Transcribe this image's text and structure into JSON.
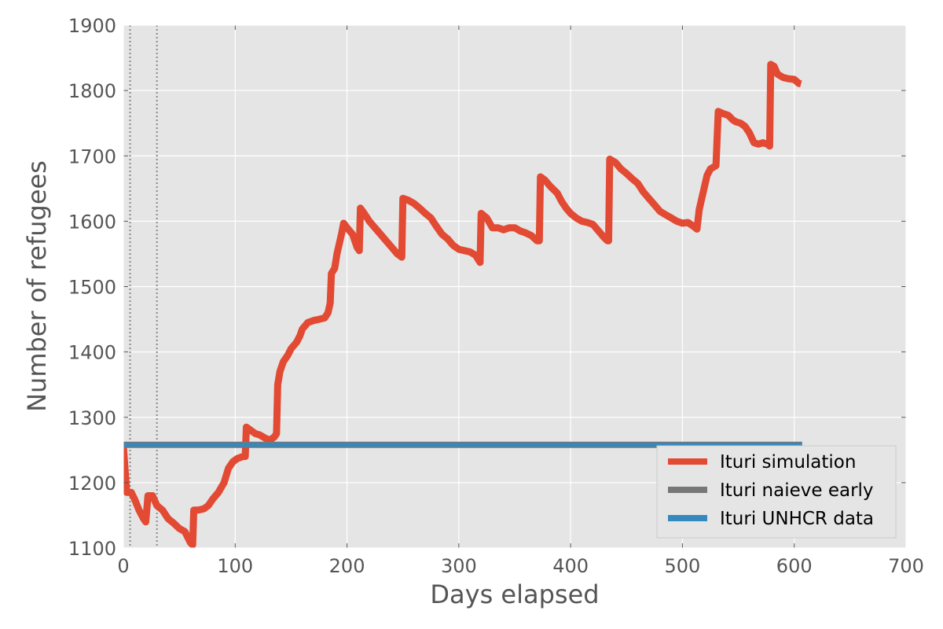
{
  "chart_data": {
    "type": "line",
    "title": "",
    "xlabel": "Days elapsed",
    "ylabel": "Number of refugees",
    "xlim": [
      0,
      700
    ],
    "ylim": [
      1100,
      1900
    ],
    "xticks": [
      0,
      100,
      200,
      300,
      400,
      500,
      600,
      700
    ],
    "yticks": [
      1100,
      1200,
      1300,
      1400,
      1500,
      1600,
      1700,
      1800,
      1900
    ],
    "grid": true,
    "legend_position": "lower-right",
    "background": "#e5e5e5",
    "vlines": [
      6,
      30
    ],
    "series": [
      {
        "name": "Ituri simulation",
        "color": "#e24a33",
        "points": [
          [
            0,
            1255
          ],
          [
            3,
            1185
          ],
          [
            7,
            1185
          ],
          [
            10,
            1175
          ],
          [
            14,
            1158
          ],
          [
            18,
            1145
          ],
          [
            20,
            1140
          ],
          [
            22,
            1180
          ],
          [
            26,
            1180
          ],
          [
            30,
            1165
          ],
          [
            35,
            1158
          ],
          [
            40,
            1145
          ],
          [
            45,
            1138
          ],
          [
            50,
            1130
          ],
          [
            55,
            1125
          ],
          [
            60,
            1108
          ],
          [
            62,
            1105
          ],
          [
            63,
            1158
          ],
          [
            67,
            1158
          ],
          [
            72,
            1160
          ],
          [
            76,
            1165
          ],
          [
            80,
            1175
          ],
          [
            85,
            1185
          ],
          [
            90,
            1200
          ],
          [
            94,
            1222
          ],
          [
            98,
            1232
          ],
          [
            102,
            1237
          ],
          [
            107,
            1240
          ],
          [
            109,
            1240
          ],
          [
            110,
            1285
          ],
          [
            114,
            1280
          ],
          [
            118,
            1275
          ],
          [
            122,
            1273
          ],
          [
            127,
            1268
          ],
          [
            131,
            1265
          ],
          [
            135,
            1270
          ],
          [
            137,
            1275
          ],
          [
            138,
            1350
          ],
          [
            140,
            1370
          ],
          [
            143,
            1385
          ],
          [
            147,
            1395
          ],
          [
            150,
            1405
          ],
          [
            155,
            1415
          ],
          [
            158,
            1425
          ],
          [
            160,
            1435
          ],
          [
            165,
            1445
          ],
          [
            170,
            1448
          ],
          [
            175,
            1450
          ],
          [
            180,
            1452
          ],
          [
            183,
            1460
          ],
          [
            185,
            1475
          ],
          [
            186,
            1520
          ],
          [
            189,
            1528
          ],
          [
            191,
            1550
          ],
          [
            195,
            1580
          ],
          [
            197,
            1597
          ],
          [
            200,
            1590
          ],
          [
            205,
            1580
          ],
          [
            209,
            1560
          ],
          [
            211,
            1555
          ],
          [
            212,
            1620
          ],
          [
            215,
            1613
          ],
          [
            220,
            1600
          ],
          [
            225,
            1590
          ],
          [
            230,
            1580
          ],
          [
            235,
            1570
          ],
          [
            240,
            1560
          ],
          [
            245,
            1550
          ],
          [
            249,
            1545
          ],
          [
            250,
            1635
          ],
          [
            255,
            1632
          ],
          [
            260,
            1627
          ],
          [
            265,
            1620
          ],
          [
            270,
            1612
          ],
          [
            275,
            1605
          ],
          [
            280,
            1592
          ],
          [
            285,
            1580
          ],
          [
            290,
            1573
          ],
          [
            295,
            1563
          ],
          [
            300,
            1557
          ],
          [
            305,
            1555
          ],
          [
            310,
            1553
          ],
          [
            315,
            1548
          ],
          [
            319,
            1537
          ],
          [
            320,
            1612
          ],
          [
            325,
            1605
          ],
          [
            330,
            1590
          ],
          [
            335,
            1590
          ],
          [
            340,
            1587
          ],
          [
            345,
            1590
          ],
          [
            350,
            1590
          ],
          [
            355,
            1585
          ],
          [
            360,
            1582
          ],
          [
            365,
            1578
          ],
          [
            370,
            1570
          ],
          [
            372,
            1570
          ],
          [
            373,
            1668
          ],
          [
            377,
            1663
          ],
          [
            382,
            1653
          ],
          [
            388,
            1643
          ],
          [
            392,
            1630
          ],
          [
            396,
            1620
          ],
          [
            400,
            1612
          ],
          [
            405,
            1605
          ],
          [
            410,
            1600
          ],
          [
            415,
            1598
          ],
          [
            420,
            1595
          ],
          [
            425,
            1585
          ],
          [
            430,
            1575
          ],
          [
            433,
            1570
          ],
          [
            434,
            1570
          ],
          [
            435,
            1695
          ],
          [
            440,
            1690
          ],
          [
            445,
            1680
          ],
          [
            450,
            1673
          ],
          [
            455,
            1665
          ],
          [
            460,
            1658
          ],
          [
            465,
            1645
          ],
          [
            470,
            1635
          ],
          [
            475,
            1625
          ],
          [
            480,
            1615
          ],
          [
            485,
            1610
          ],
          [
            490,
            1605
          ],
          [
            495,
            1600
          ],
          [
            500,
            1597
          ],
          [
            505,
            1598
          ],
          [
            510,
            1592
          ],
          [
            513,
            1588
          ],
          [
            515,
            1618
          ],
          [
            518,
            1640
          ],
          [
            522,
            1670
          ],
          [
            525,
            1680
          ],
          [
            530,
            1685
          ],
          [
            532,
            1768
          ],
          [
            536,
            1765
          ],
          [
            541,
            1762
          ],
          [
            545,
            1755
          ],
          [
            548,
            1752
          ],
          [
            552,
            1750
          ],
          [
            556,
            1745
          ],
          [
            560,
            1735
          ],
          [
            564,
            1720
          ],
          [
            568,
            1718
          ],
          [
            572,
            1720
          ],
          [
            576,
            1718
          ],
          [
            578,
            1715
          ],
          [
            579,
            1840
          ],
          [
            582,
            1837
          ],
          [
            585,
            1825
          ],
          [
            590,
            1820
          ],
          [
            595,
            1818
          ],
          [
            600,
            1817
          ],
          [
            604,
            1811
          ],
          [
            606,
            1810
          ]
        ]
      },
      {
        "name": "Ituri naieve early",
        "color": "#777777",
        "points": [
          [
            0,
            1258
          ],
          [
            607,
            1258
          ]
        ]
      },
      {
        "name": "Ituri UNHCR data",
        "color": "#348abd",
        "points": [
          [
            0,
            1258
          ],
          [
            607,
            1258
          ]
        ]
      }
    ]
  }
}
